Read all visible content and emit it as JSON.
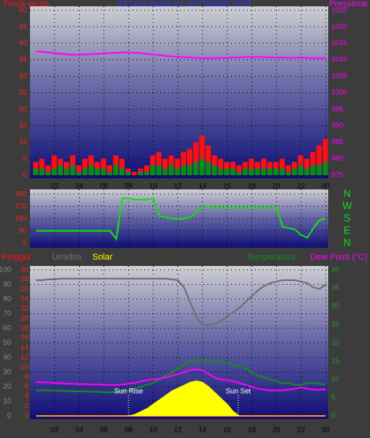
{
  "chart_data": [
    {
      "type": "combo",
      "title": "24 hour graph for 10 October 2024",
      "x": [
        0.5,
        1,
        1.5,
        2,
        2.5,
        3,
        3.5,
        4,
        4.5,
        5,
        5.5,
        6,
        6.5,
        7,
        7.5,
        8,
        8.5,
        9,
        9.5,
        10,
        10.5,
        11,
        11.5,
        12,
        12.5,
        13,
        13.5,
        14,
        14.5,
        15,
        15.5,
        16,
        16.5,
        17,
        17.5,
        18,
        18.5,
        19,
        19.5,
        20,
        20.5,
        21,
        21.5,
        22,
        22.5,
        23,
        23.5,
        24
      ],
      "xlim": [
        0,
        24.2
      ],
      "xticks": [
        {
          "value": 2,
          "label": "02"
        },
        {
          "value": 4,
          "label": "04"
        },
        {
          "value": 6,
          "label": "06"
        },
        {
          "value": 8,
          "label": "08"
        },
        10,
        12,
        14,
        16,
        18,
        20,
        22,
        {
          "value": 24,
          "label": "00"
        }
      ],
      "ylim": [
        0,
        50
      ],
      "yticks": [
        0,
        5,
        10,
        15,
        20,
        25,
        30,
        35,
        40,
        45,
        50
      ],
      "y2lim": [
        975,
        1025
      ],
      "y2ticks": [
        975,
        980,
        985,
        990,
        995,
        1000,
        1005,
        1010,
        1015,
        1020,
        1025
      ],
      "grid": true,
      "series": [
        {
          "name": "Forza vento",
          "style": "bar",
          "color": "#ff1010",
          "values": [
            4,
            5,
            3,
            6,
            5,
            4,
            6,
            3,
            5,
            6,
            4,
            5,
            3,
            6,
            5,
            2,
            1,
            2,
            3,
            6,
            7,
            5,
            6,
            5,
            7,
            8,
            10,
            12,
            9,
            6,
            5,
            4,
            4,
            3,
            4,
            5,
            4,
            5,
            4,
            4,
            5,
            3,
            4,
            6,
            5,
            7,
            9,
            11
          ]
        },
        {
          "style": "bar",
          "color": "#0a8a1a",
          "values": [
            2,
            2,
            1,
            2,
            3,
            2,
            3,
            1,
            2,
            3,
            2,
            2,
            1,
            3,
            2,
            1,
            0,
            1,
            1,
            3,
            3,
            2,
            3,
            2,
            3,
            3,
            4,
            5,
            4,
            3,
            2,
            2,
            2,
            1,
            2,
            2,
            2,
            2,
            2,
            2,
            2,
            1,
            2,
            3,
            2,
            3,
            3,
            4
          ]
        },
        {
          "name": "Pressione",
          "style": "line",
          "axis": "y2",
          "color": "#ff00ff",
          "values": [
            1012.5,
            1012.4,
            1012.2,
            1012.0,
            1011.8,
            1011.6,
            1011.5,
            1011.5,
            1011.6,
            1011.7,
            1011.8,
            1011.9,
            1012.0,
            1012.1,
            1012.2,
            1012.2,
            1012.1,
            1012.0,
            1011.8,
            1011.6,
            1011.4,
            1011.2,
            1011.0,
            1010.9,
            1010.8,
            1010.7,
            1010.6,
            1010.5,
            1010.5,
            1010.5,
            1010.6,
            1010.6,
            1010.7,
            1010.7,
            1010.8,
            1010.8,
            1010.8,
            1010.8,
            1010.7,
            1010.7,
            1010.7,
            1010.6,
            1010.6,
            1010.7,
            1010.6,
            1010.5,
            1010.5,
            1010.5
          ]
        }
      ]
    },
    {
      "type": "line",
      "x": [
        0.5,
        1,
        1.5,
        2,
        2.5,
        3,
        3.5,
        4,
        4.5,
        5,
        5.5,
        6,
        6.5,
        7,
        7.5,
        8,
        8.5,
        9,
        9.5,
        10,
        10.5,
        11,
        11.5,
        12,
        12.5,
        13,
        13.5,
        14,
        14.5,
        15,
        15.5,
        16,
        16.5,
        17,
        17.5,
        18,
        18.5,
        19,
        19.5,
        20,
        20.5,
        21,
        21.5,
        22,
        22.5,
        23,
        23.5,
        24
      ],
      "xlim": [
        0,
        24.2
      ],
      "ylim": [
        0,
        360
      ],
      "yticks": [
        0,
        90,
        180,
        270,
        360
      ],
      "y2lim": [
        0,
        360
      ],
      "y2ticks": [
        {
          "value": 0,
          "label": "N"
        },
        {
          "value": 90,
          "label": "E"
        },
        {
          "value": 180,
          "label": "S"
        },
        {
          "value": 270,
          "label": "W"
        },
        {
          "value": 360,
          "label": "N"
        }
      ],
      "grid": true,
      "series": [
        {
          "style": "line",
          "color": "#10e010",
          "values": [
            90,
            90,
            90,
            90,
            90,
            90,
            90,
            90,
            90,
            90,
            90,
            90,
            90,
            30,
            330,
            330,
            320,
            320,
            320,
            330,
            200,
            190,
            180,
            180,
            180,
            190,
            230,
            260,
            270,
            260,
            260,
            260,
            260,
            260,
            260,
            260,
            260,
            260,
            260,
            260,
            120,
            110,
            100,
            60,
            40,
            110,
            170,
            180
          ]
        }
      ]
    },
    {
      "type": "combo",
      "x": [
        0.5,
        1,
        1.5,
        2,
        2.5,
        3,
        3.5,
        4,
        4.5,
        5,
        5.5,
        6,
        6.5,
        7,
        7.5,
        8,
        8.5,
        9,
        9.5,
        10,
        10.5,
        11,
        11.5,
        12,
        12.5,
        13,
        13.5,
        14,
        14.5,
        15,
        15.5,
        16,
        16.5,
        17,
        17.5,
        18,
        18.5,
        19,
        19.5,
        20,
        20.5,
        21,
        21.5,
        22,
        22.5,
        23,
        23.5,
        24
      ],
      "xlim": [
        0,
        24.2
      ],
      "xticks": [
        {
          "value": 2,
          "label": "02"
        },
        {
          "value": 4,
          "label": "04"
        },
        {
          "value": 6,
          "label": "06"
        },
        {
          "value": 8,
          "label": "08"
        },
        10,
        12,
        14,
        16,
        18,
        20,
        22,
        {
          "value": 24,
          "label": "00"
        }
      ],
      "ylim": [
        0,
        30
      ],
      "yticks": [
        0,
        2,
        4,
        6,
        8,
        10,
        12,
        14,
        16,
        18,
        20,
        22,
        24,
        26,
        28,
        30
      ],
      "y3lim": [
        0,
        100
      ],
      "y3ticks": [
        0,
        10,
        20,
        30,
        40,
        50,
        60,
        70,
        80,
        90,
        100
      ],
      "y2lim": [
        0,
        40
      ],
      "y2ticks": [
        0,
        5,
        10,
        15,
        20,
        25,
        30,
        35,
        40
      ],
      "grid": true,
      "annotations": [
        {
          "text": "Sun Rise",
          "x": 8.0
        },
        {
          "text": "Sun Set",
          "x": 16.9
        }
      ],
      "series": [
        {
          "name": "Pioggia",
          "style": "line",
          "color": "#ff1010",
          "values": [
            0,
            0,
            0,
            0,
            0,
            0,
            0,
            0,
            0,
            0,
            0,
            0,
            0,
            0,
            0,
            0,
            0,
            0,
            0,
            0,
            0,
            0,
            0,
            0,
            0,
            0,
            0,
            0,
            0,
            0,
            0,
            0,
            0,
            0,
            0,
            0,
            0,
            0,
            0,
            0,
            0,
            0,
            0,
            0,
            0,
            0,
            0,
            0
          ]
        },
        {
          "name": "Umidita",
          "style": "line",
          "axis": "y3",
          "color": "#6e6e6e",
          "values": [
            93,
            93,
            93.5,
            93.5,
            94,
            94,
            94,
            94,
            94,
            94,
            94,
            94,
            94,
            94,
            94,
            94,
            94,
            94,
            94,
            94,
            94,
            94,
            93.5,
            93,
            88,
            78,
            68,
            62,
            62,
            63,
            65,
            68,
            71,
            74,
            78,
            82,
            86,
            89,
            91,
            92,
            93,
            93,
            93,
            92,
            91,
            88,
            87,
            90
          ]
        },
        {
          "name": "Solar",
          "style": "area",
          "axis": "y3",
          "color": "#ffff00",
          "values": [
            0,
            0,
            0,
            0,
            0,
            0,
            0,
            0,
            0,
            0,
            0,
            0,
            0,
            0,
            0,
            0,
            1,
            3,
            5,
            8,
            11,
            14,
            17,
            19,
            21,
            23,
            24,
            23,
            20,
            16,
            12,
            8,
            3,
            0,
            0,
            0,
            0,
            0,
            0,
            0,
            0,
            0,
            0,
            0,
            0,
            0,
            0,
            0
          ]
        },
        {
          "name": "Temperatura",
          "style": "line",
          "axis": "y2",
          "color": "#1a8a1a",
          "values": [
            7,
            7,
            7,
            7,
            6.8,
            6.8,
            6.7,
            6.7,
            6.7,
            6.6,
            6.6,
            6.5,
            6.5,
            6.6,
            6.8,
            7,
            7.5,
            8,
            8.5,
            9,
            10,
            11,
            12,
            13,
            14,
            15,
            15.2,
            15.3,
            15.2,
            15,
            14.8,
            14.5,
            14,
            13.5,
            13,
            12,
            11,
            10.5,
            10,
            9.5,
            9,
            9,
            8.5,
            8.5,
            9,
            9,
            8.8,
            8.5
          ]
        },
        {
          "name": "Dew Point (°C)",
          "style": "line",
          "axis": "y2",
          "color": "#ff00ff",
          "values": [
            9.3,
            9.2,
            9.2,
            9,
            9,
            8.8,
            8.8,
            8.7,
            8.7,
            8.6,
            8.6,
            8.5,
            8.5,
            8.5,
            8.6,
            8.8,
            9,
            9.5,
            9.8,
            10,
            10.2,
            10.5,
            11,
            11.5,
            12,
            12.5,
            12.8,
            12.5,
            11.5,
            10.5,
            10,
            9.8,
            9.5,
            9,
            8.5,
            8,
            7.5,
            7.2,
            7,
            7,
            7,
            7.2,
            7.5,
            7.8,
            7.5,
            7.2,
            7.2,
            7.3
          ]
        }
      ]
    }
  ]
}
